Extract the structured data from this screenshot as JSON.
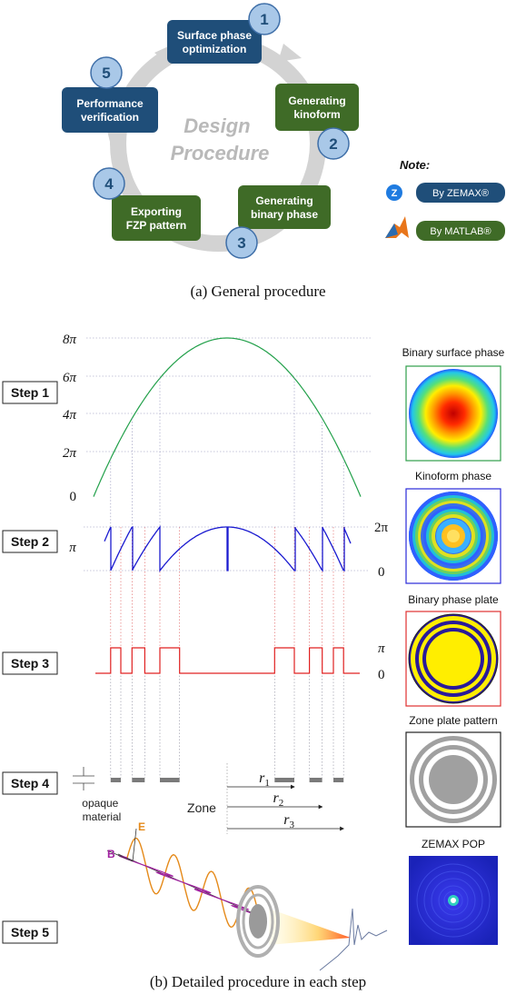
{
  "part_a": {
    "center_label": "Design\nProcedure",
    "steps": [
      {
        "num": "1",
        "label": "Surface phase\noptimization",
        "tool": "zemax"
      },
      {
        "num": "2",
        "label": "Generating\nkinoform",
        "tool": "matlab"
      },
      {
        "num": "3",
        "label": "Generating\nbinary phase",
        "tool": "matlab"
      },
      {
        "num": "4",
        "label": "Exporting\nFZP pattern",
        "tool": "matlab"
      },
      {
        "num": "5",
        "label": "Performance\nverification",
        "tool": "zemax"
      }
    ],
    "note": {
      "title": "Note:",
      "zemax_icon_letter": "Z",
      "zemax_label": "By ZEMAX®",
      "matlab_label": "By MATLAB®"
    },
    "caption": "(a) General procedure",
    "colors": {
      "zemax": "#1f4e79",
      "matlab": "#3f6b27",
      "number_circle": "#a9c8e8",
      "ring": "#d0d0d0"
    }
  },
  "part_b": {
    "step_labels": [
      "Step 1",
      "Step 2",
      "Step 3",
      "Step 4",
      "Step 5"
    ],
    "step1_ticks": [
      "8π",
      "6π",
      "4π",
      "2π",
      "0"
    ],
    "step2_ticks_left": [
      "π"
    ],
    "step2_ticks_right": [
      "2π",
      "0"
    ],
    "step3_ticks_right": [
      "π",
      "0"
    ],
    "opaque_label": "opaque\nmaterial",
    "zone_label": "Zone",
    "radii": [
      {
        "sym": "r",
        "sub": "1"
      },
      {
        "sym": "r",
        "sub": "2"
      },
      {
        "sym": "r",
        "sub": "3"
      }
    ],
    "wave_labels": {
      "e": "E",
      "b": "B"
    },
    "panels": [
      {
        "title": "Binary surface phase",
        "frame": "#2e9e4a"
      },
      {
        "title": "Kinoform phase",
        "frame": "#2a2ad8"
      },
      {
        "title": "Binary phase plate",
        "frame": "#e03030"
      },
      {
        "title": "Zone plate pattern",
        "frame": "#222222"
      },
      {
        "title": "ZEMAX POP",
        "frame": "none"
      }
    ],
    "caption": "(b) Detailed procedure in each step",
    "colors": {
      "step1": "#22a04a",
      "step2": "#1a1ad0",
      "step3": "#e02020",
      "zone_bar": "#7a7a7a"
    }
  }
}
